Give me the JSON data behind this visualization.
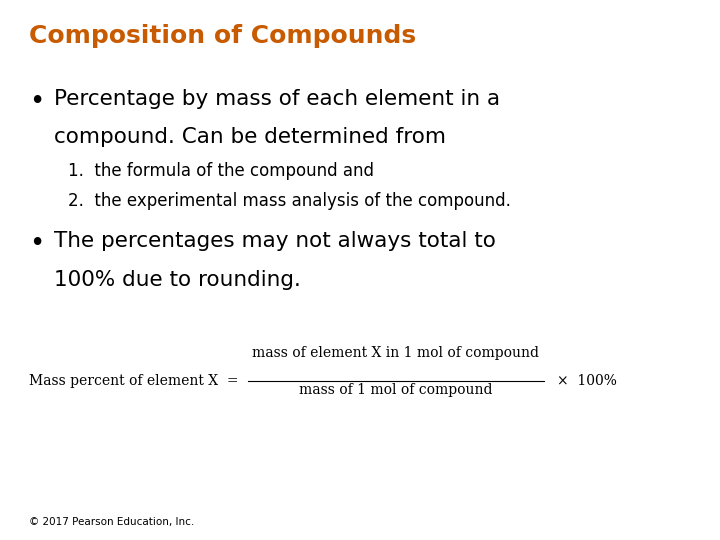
{
  "title": "Composition of Compounds",
  "title_color": "#C85A00",
  "title_fontsize": 18,
  "bg_color": "#FFFFFF",
  "bullet1_line1": "Percentage by mass of each element in a",
  "bullet1_line2": "compound. Can be determined from",
  "sub1": "1.  the formula of the compound and",
  "sub2": "2.  the experimental mass analysis of the compound.",
  "bullet2_line1": "The percentages may not always total to",
  "bullet2_line2": "100% due to rounding.",
  "formula_label": "Mass percent of element X  =",
  "formula_numerator": "mass of element X in 1 mol of compound",
  "formula_denominator": "mass of 1 mol of compound",
  "formula_times": "×  100%",
  "copyright": "© 2017 Pearson Education, Inc.",
  "text_color": "#000000",
  "bullet_color": "#000000",
  "main_fontsize": 15.5,
  "sub_fontsize": 12,
  "formula_fontsize": 10,
  "copyright_fontsize": 7.5
}
